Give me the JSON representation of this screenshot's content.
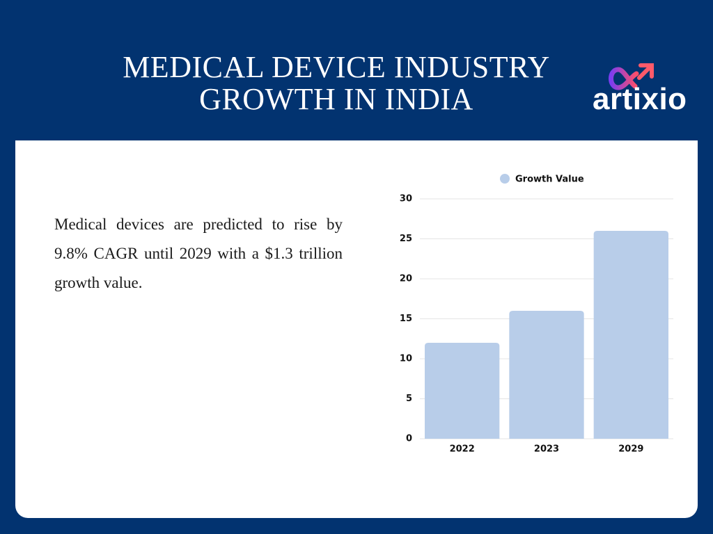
{
  "header": {
    "title": "MEDICAL DEVICE INDUSTRY GROWTH IN INDIA",
    "logo": "artixio"
  },
  "body": {
    "text": "Medical devices are predicted to rise by 9.8% CAGR until 2029 with a $1.3 trillion growth value."
  },
  "chart_data": {
    "type": "bar",
    "categories": [
      "2022",
      "2023",
      "2029"
    ],
    "series": [
      {
        "name": "Growth Value",
        "color": "#b8cde9",
        "values": [
          12,
          16,
          26
        ]
      }
    ],
    "ylim": [
      0,
      30
    ],
    "yticks": [
      0,
      5,
      10,
      15,
      20,
      25,
      30
    ],
    "grid": true,
    "legend": "top"
  }
}
